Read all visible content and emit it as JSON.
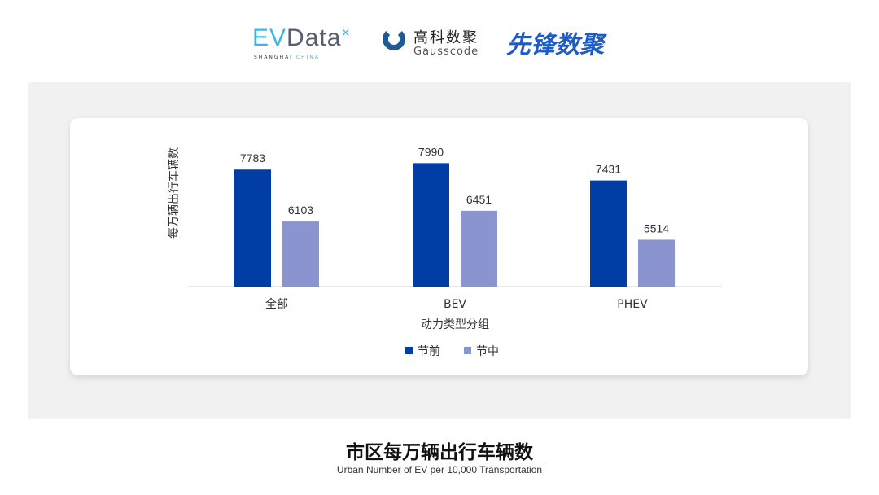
{
  "logos": {
    "evdata_ev": "EV",
    "evdata_rest": "Data",
    "evdata_sub_a": "SHANGHAI",
    "evdata_sub_b": "CHINA",
    "gauss_cn": "高科数聚",
    "gauss_en": "Gausscode",
    "xianfeng": "先锋数聚"
  },
  "title": "市区每万辆出行车辆数",
  "subtitle": "Urban Number of EV per 10,000 Transportation",
  "chart_data": {
    "type": "bar",
    "categories": [
      "全部",
      "BEV",
      "PHEV"
    ],
    "series": [
      {
        "name": "节前",
        "values": [
          7783,
          7990,
          7431
        ],
        "color": "#003da5"
      },
      {
        "name": "节中",
        "values": [
          6103,
          6451,
          5514
        ],
        "color": "#8a95cf"
      }
    ],
    "xlabel": "动力类型分组",
    "ylabel": "每万辆出行车辆数",
    "ylim": [
      4000,
      8500
    ],
    "grid": false,
    "legend": "bottom",
    "data_labels": true
  }
}
